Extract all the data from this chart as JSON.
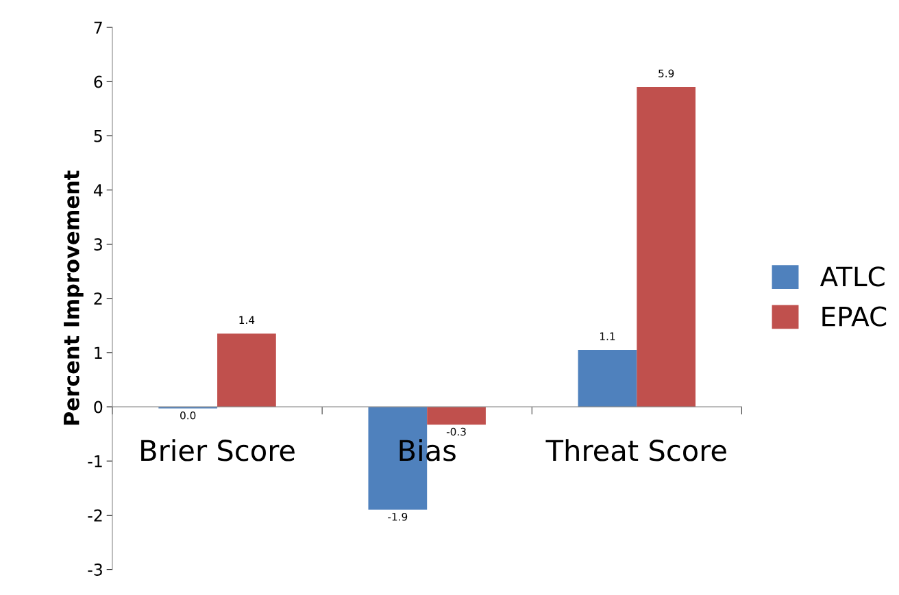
{
  "chart_data": {
    "type": "bar",
    "ylabel": "Percent Improvement",
    "categories": [
      "Brier Score",
      "Bias",
      "Threat Score"
    ],
    "series": [
      {
        "name": "ATLC",
        "color": "#4f81bd",
        "values": [
          -0.03,
          -1.9,
          1.05
        ],
        "value_labels": [
          "0.0",
          "-1.9",
          "1.1"
        ]
      },
      {
        "name": "EPAC",
        "color": "#c0504d",
        "values": [
          1.35,
          -0.33,
          5.9
        ],
        "value_labels": [
          "1.4",
          "-0.3",
          "5.9"
        ]
      }
    ],
    "ylim": [
      -3,
      7
    ],
    "yticks": [
      -3,
      -2,
      -1,
      0,
      1,
      2,
      3,
      4,
      5,
      6,
      7
    ],
    "grid": false,
    "legend": "right"
  }
}
